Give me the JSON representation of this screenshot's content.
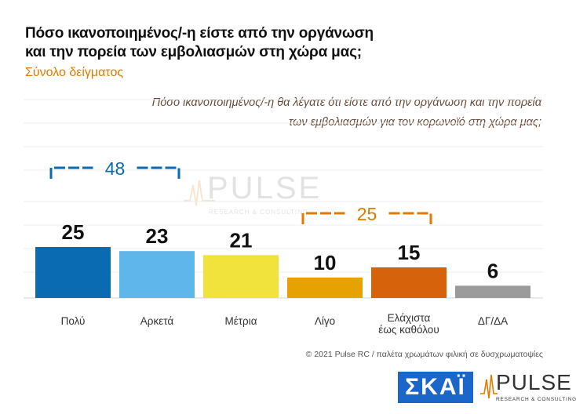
{
  "title_line1": "Πόσο ικανοποιημένος/-η είστε από την οργάνωση",
  "title_line2": "και την πορεία των εμβολιασμών στη χώρα μας;",
  "subtitle": "Σύνολο δείγματος",
  "question_line1": "Πόσο ικανοποιημένος/-η θα λέγατε ότι είστε από την οργάνωση και την πορεία",
  "question_line2": "των εμβολιασμών για τον κορωνοϊό στη χώρα μας;",
  "footer": "© 2021 Pulse RC  /  παλέτα χρωμάτων φιλική σε δυσχρωματοψίες",
  "logo_skai": "ΣΚΑΪ",
  "logo_pulse": "PULSE",
  "logo_pulse_tagline": "RESEARCH & CONSULTING",
  "colors": {
    "bars": [
      "#0a6bb3",
      "#5fb6ea",
      "#f1e23c",
      "#e6a300",
      "#d6620b",
      "#9b9b9b"
    ],
    "bracket_left": "#0a6bb3",
    "bracket_right": "#e07b00",
    "subtitle": "#e07b00"
  },
  "chart_data": {
    "type": "bar",
    "categories": [
      [
        "Πολύ"
      ],
      [
        "Αρκετά"
      ],
      [
        "Μέτρια"
      ],
      [
        "Λίγο"
      ],
      [
        "Ελάχιστα",
        "έως καθόλου"
      ],
      [
        "ΔΓ/ΔΑ"
      ]
    ],
    "values": [
      25,
      23,
      21,
      10,
      15,
      6
    ],
    "ylim": [
      0,
      25
    ],
    "grid": true,
    "groups": [
      {
        "label": "48",
        "from": 0,
        "to": 1
      },
      {
        "label": "25",
        "from": 3,
        "to": 4
      }
    ]
  }
}
